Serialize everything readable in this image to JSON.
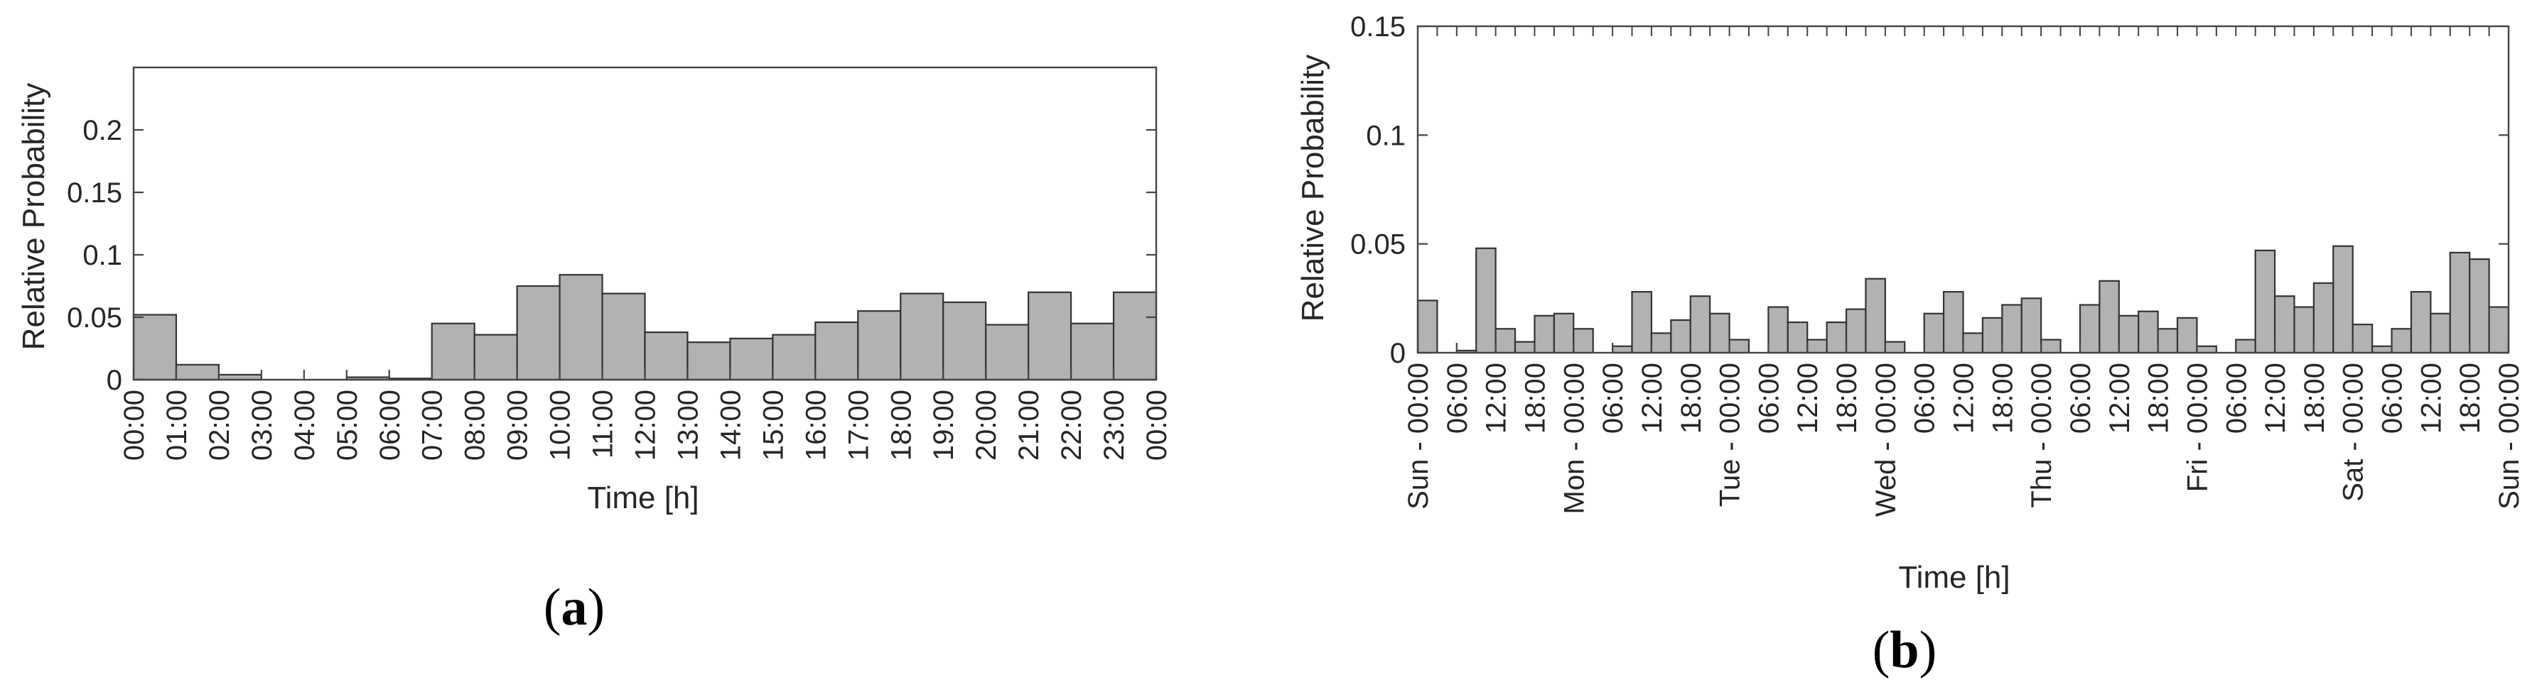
{
  "colors": {
    "bar_fill": "#b2b2b2",
    "bar_edge": "#333333",
    "axis": "#444444",
    "text": "#262626"
  },
  "chart_data": [
    {
      "id": "a",
      "type": "bar",
      "caption": {
        "open": "(",
        "letter": "a",
        "close": ")"
      },
      "xlabel": "Time [h]",
      "ylabel": "Relative Probability",
      "ylim": [
        0,
        0.25
      ],
      "y_ticks": [
        0,
        0.05,
        0.1,
        0.15,
        0.2
      ],
      "y_tick_labels": [
        "0",
        "0.05",
        "0.1",
        "0.15",
        "0.2"
      ],
      "x_tick_labels": [
        "00:00",
        "01:00",
        "02:00",
        "03:00",
        "04:00",
        "05:00",
        "06:00",
        "07:00",
        "08:00",
        "09:00",
        "10:00",
        "11:00",
        "12:00",
        "13:00",
        "14:00",
        "15:00",
        "16:00",
        "17:00",
        "18:00",
        "19:00",
        "20:00",
        "21:00",
        "22:00",
        "23:00",
        "00:00"
      ],
      "categories": [
        "00:00",
        "01:00",
        "02:00",
        "03:00",
        "04:00",
        "05:00",
        "06:00",
        "07:00",
        "08:00",
        "09:00",
        "10:00",
        "11:00",
        "12:00",
        "13:00",
        "14:00",
        "15:00",
        "16:00",
        "17:00",
        "18:00",
        "19:00",
        "20:00",
        "21:00",
        "22:00",
        "23:00"
      ],
      "values": [
        0.052,
        0.012,
        0.004,
        0,
        0,
        0.002,
        0.001,
        0.045,
        0.036,
        0.075,
        0.084,
        0.069,
        0.038,
        0.03,
        0.033,
        0.036,
        0.046,
        0.055,
        0.069,
        0.062,
        0.044,
        0.07,
        0.045,
        0.07
      ],
      "grid": false
    },
    {
      "id": "b",
      "type": "bar",
      "caption": {
        "open": "(",
        "letter": "b",
        "close": ")"
      },
      "xlabel": "Time [h]",
      "ylabel": "Relative Probability",
      "ylim": [
        0,
        0.15
      ],
      "y_ticks": [
        0,
        0.05,
        0.1,
        0.15
      ],
      "y_tick_labels": [
        "0",
        "0.05",
        "0.1",
        "0.15"
      ],
      "x_tick_labels": [
        "Sun - 00:00",
        "06:00",
        "12:00",
        "18:00",
        "Mon - 00:00",
        "06:00",
        "12:00",
        "18:00",
        "Tue - 00:00",
        "06:00",
        "12:00",
        "18:00",
        "Wed - 00:00",
        "06:00",
        "12:00",
        "18:00",
        "Thu - 00:00",
        "06:00",
        "12:00",
        "18:00",
        "Fri - 00:00",
        "06:00",
        "12:00",
        "18:00",
        "Sat - 00:00",
        "06:00",
        "12:00",
        "18:00",
        "Sun - 00:00"
      ],
      "bin_hours": 3,
      "values": [
        0.024,
        0,
        0.001,
        0.048,
        0.011,
        0.005,
        0.017,
        0.018,
        0.011,
        0,
        0.003,
        0.028,
        0.009,
        0.015,
        0.026,
        0.018,
        0.006,
        0,
        0.021,
        0.014,
        0.006,
        0.014,
        0.02,
        0.034,
        0.005,
        0,
        0.018,
        0.028,
        0.009,
        0.016,
        0.022,
        0.025,
        0.006,
        0,
        0.022,
        0.033,
        0.017,
        0.019,
        0.011,
        0.016,
        0.003,
        0,
        0.006,
        0.047,
        0.026,
        0.021,
        0.032,
        0.049,
        0.013,
        0.003,
        0.011,
        0.028,
        0.018,
        0.046,
        0.043,
        0.021
      ],
      "grid": false
    }
  ]
}
